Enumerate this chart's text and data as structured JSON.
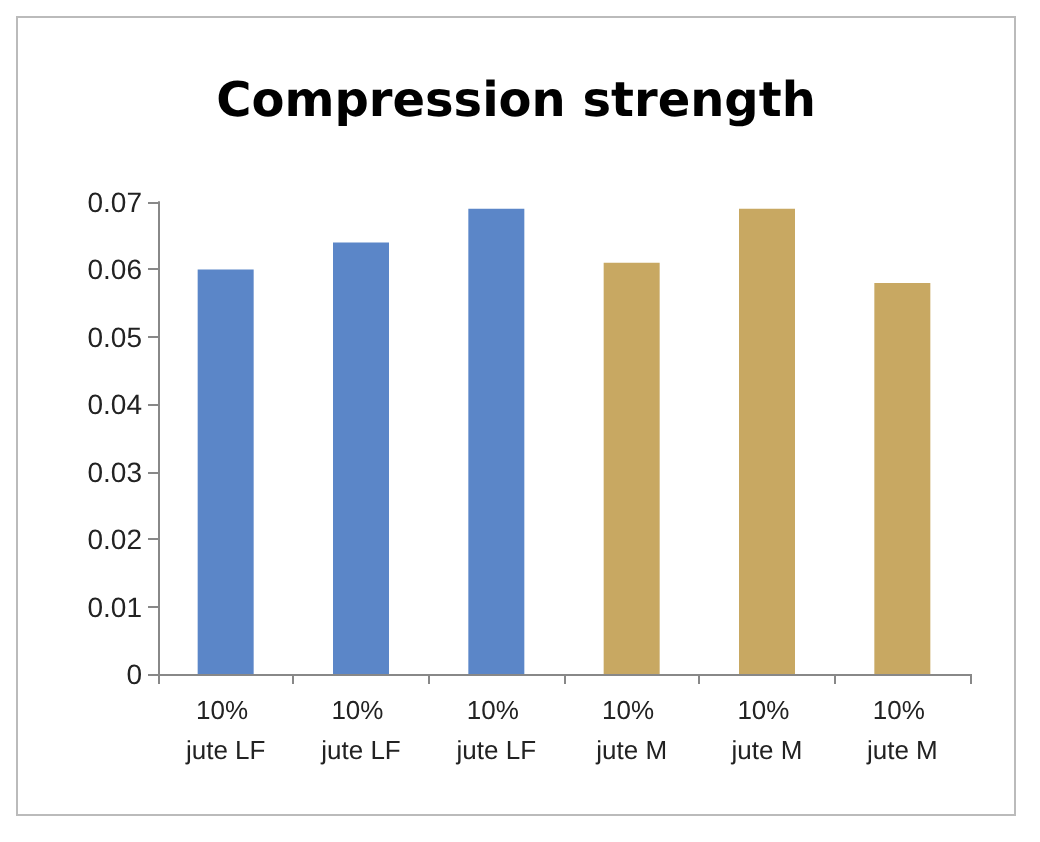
{
  "chart_data": {
    "type": "bar",
    "title": "Compression strength",
    "categories": [
      "10% jute LF",
      "10% jute LF",
      "10% jute LF",
      "10% jute M",
      "10% jute M",
      "10% jute M"
    ],
    "values": [
      0.06,
      0.064,
      0.069,
      0.061,
      0.069,
      0.058
    ],
    "colors": [
      "#5b86c8",
      "#5b86c8",
      "#5b86c8",
      "#c8a862",
      "#c8a862",
      "#c8a862"
    ],
    "ylim": [
      0,
      0.07
    ],
    "yticks": [
      0,
      0.01,
      0.02,
      0.03,
      0.04,
      0.05,
      0.06,
      0.07
    ],
    "grid": false
  }
}
